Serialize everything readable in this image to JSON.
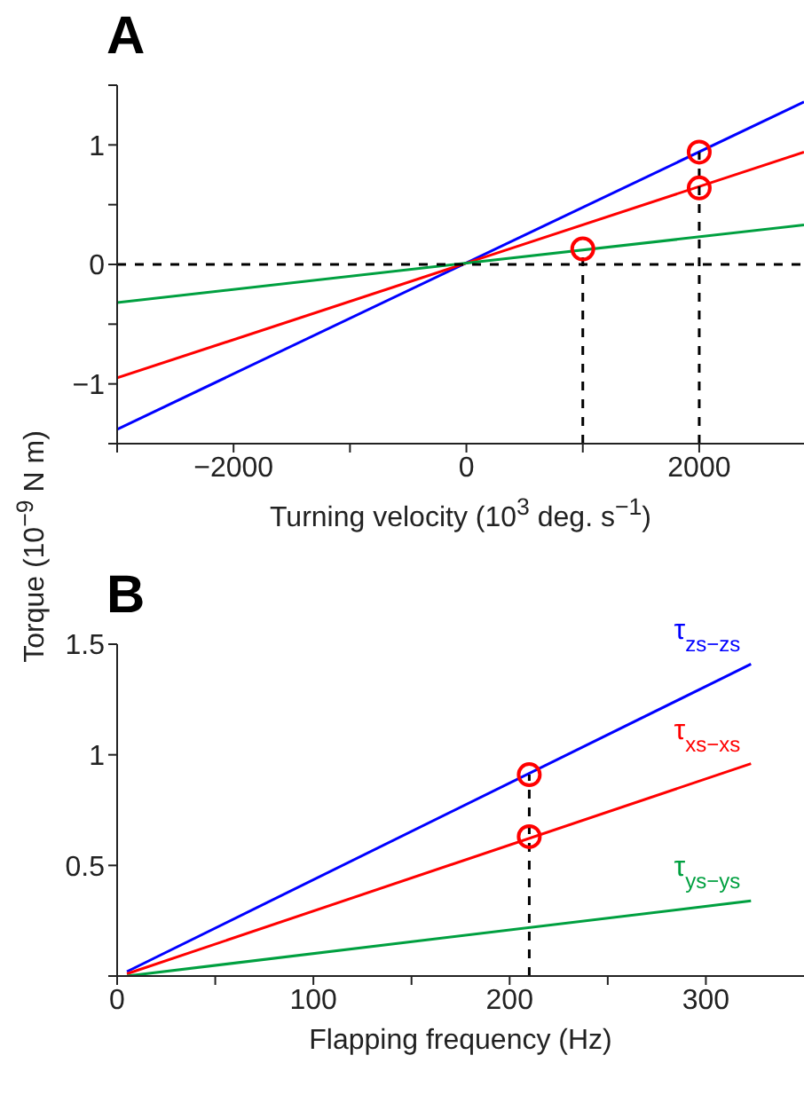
{
  "chart_data": [
    {
      "type": "line",
      "title": "A",
      "xlabel": "Turning velocity (10$^{3}$ deg. s$^{−1}$)",
      "ylabel": "Torque (10$^{−9}$ N m)",
      "marker": "none",
      "line_style": "solid",
      "xlim": [
        -3000,
        2900
      ],
      "ylim": [
        -1.5,
        1.5
      ],
      "xticks": [
        {
          "value": -3000,
          "label": null
        },
        {
          "value": -2000,
          "label": "−2000"
        },
        {
          "value": -1000,
          "label": null
        },
        0,
        {
          "value": 1000,
          "label": null
        },
        2000
      ],
      "yticks": [
        {
          "value": -1.5,
          "label": null
        },
        {
          "value": -1,
          "label": "−1"
        },
        {
          "value": -0.5,
          "label": null
        },
        0,
        {
          "value": 0.5,
          "label": null
        },
        1,
        {
          "value": 1.5,
          "label": null
        }
      ],
      "x": [
        -3000,
        2900
      ],
      "series": [
        {
          "color": "#0000ff",
          "values": [
            -1.38,
            1.36
          ]
        },
        {
          "color": "#ff0000",
          "values": [
            -0.95,
            0.94
          ]
        },
        {
          "color": "#00a040",
          "values": [
            -0.32,
            0.33
          ]
        },
        {
          "type": "line",
          "color": "#000000",
          "line_style": "dashed",
          "x": [
            -3000,
            2900
          ],
          "values": [
            0,
            0
          ]
        },
        {
          "type": "line",
          "color": "#000000",
          "line_style": "dashed",
          "x": [
            1000,
            1000
          ],
          "values": [
            -1.5,
            0.13
          ]
        },
        {
          "type": "line",
          "color": "#000000",
          "line_style": "dashed",
          "x": [
            2000,
            2000
          ],
          "values": [
            -1.5,
            0.94
          ]
        },
        {
          "type": "scatter",
          "marker": "circle",
          "color": "#ff0000",
          "x": [
            1000,
            2000,
            2000
          ],
          "values": [
            0.13,
            0.64,
            0.94
          ]
        }
      ]
    },
    {
      "type": "line",
      "title": "B",
      "xlabel": "Flapping frequency (Hz)",
      "marker": "none",
      "line_style": "solid",
      "xlim": [
        0,
        350
      ],
      "ylim": [
        0,
        1.5
      ],
      "xticks": [
        0,
        {
          "value": 50,
          "label": null
        },
        100,
        {
          "value": 150,
          "label": null
        },
        200,
        {
          "value": 250,
          "label": null
        },
        300
      ],
      "yticks": [
        {
          "value": 0,
          "label": null
        },
        0.5,
        1,
        1.5
      ],
      "x": [
        5,
        323
      ],
      "series": [
        {
          "name": "τ$_{zs−zs}$",
          "color": "#0000ff",
          "values": [
            0.02,
            1.41
          ]
        },
        {
          "name": "τ$_{xs−xs}$",
          "color": "#ff0000",
          "values": [
            0.01,
            0.96
          ]
        },
        {
          "name": "τ$_{ys−ys}$",
          "color": "#00a040",
          "values": [
            0.0,
            0.34
          ]
        },
        {
          "type": "line",
          "color": "#000000",
          "line_style": "dashed",
          "x": [
            210,
            210
          ],
          "values": [
            0,
            0.91
          ]
        },
        {
          "type": "scatter",
          "marker": "circle",
          "color": "#ff0000",
          "x": [
            210,
            210
          ],
          "values": [
            0.63,
            0.91
          ]
        }
      ]
    }
  ]
}
